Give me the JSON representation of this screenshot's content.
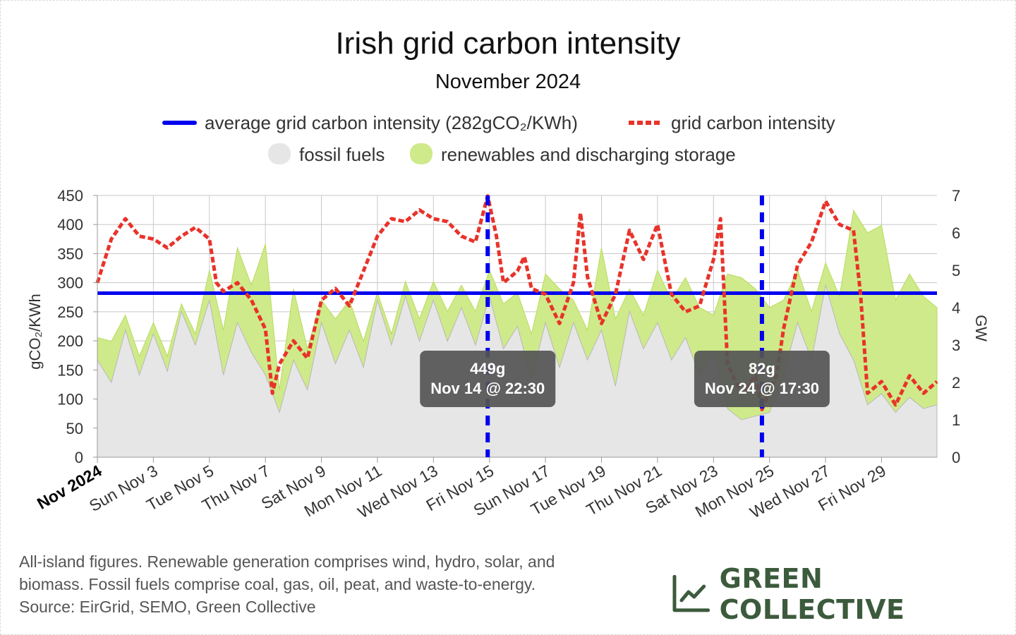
{
  "chart_data": {
    "type": "line",
    "title": "Irish grid carbon intensity",
    "subtitle": "November 2024",
    "ylabel_left": "gCO₂/KWh",
    "ylabel_right": "GW",
    "ylim_left": [
      0,
      450
    ],
    "ylim_right": [
      0,
      7
    ],
    "yticks_left": [
      "0",
      "50",
      "100",
      "150",
      "200",
      "250",
      "300",
      "350",
      "400",
      "450"
    ],
    "yticks_right": [
      "0",
      "1",
      "2",
      "3",
      "4",
      "5",
      "6",
      "7"
    ],
    "xlim": [
      "2024-11-01",
      "2024-11-30T23:30"
    ],
    "xticks": [
      {
        "date": "2024-11-01",
        "label": "Nov 2024",
        "bold": true
      },
      {
        "date": "2024-11-03",
        "label": "Sun Nov 3"
      },
      {
        "date": "2024-11-05",
        "label": "Tue Nov 5"
      },
      {
        "date": "2024-11-07",
        "label": "Thu Nov 7"
      },
      {
        "date": "2024-11-09",
        "label": "Sat Nov 9"
      },
      {
        "date": "2024-11-11",
        "label": "Mon Nov 11"
      },
      {
        "date": "2024-11-13",
        "label": "Wed Nov 13"
      },
      {
        "date": "2024-11-15",
        "label": "Fri Nov 15"
      },
      {
        "date": "2024-11-17",
        "label": "Sun Nov 17"
      },
      {
        "date": "2024-11-19",
        "label": "Tue Nov 19"
      },
      {
        "date": "2024-11-21",
        "label": "Thu Nov 21"
      },
      {
        "date": "2024-11-23",
        "label": "Sat Nov 23"
      },
      {
        "date": "2024-11-25",
        "label": "Mon Nov 25"
      },
      {
        "date": "2024-11-27",
        "label": "Wed Nov 27"
      },
      {
        "date": "2024-11-29",
        "label": "Fri Nov 29"
      }
    ],
    "grid": true,
    "legend": [
      {
        "label": "average grid carbon intensity (282gCO₂/KWh)",
        "color": "#0000ee",
        "style": "solid-line"
      },
      {
        "label": "grid carbon intensity",
        "color": "#e8332a",
        "style": "dashed-line"
      },
      {
        "label": "fossil fuels",
        "color": "#e6e6e6",
        "style": "area"
      },
      {
        "label": "renewables and discharging storage",
        "color": "#cfea8a",
        "style": "area"
      }
    ],
    "legend_position": "top-center",
    "average": 282,
    "series": [
      {
        "name": "grid carbon intensity",
        "axis": "left",
        "unit": "gCO₂/KWh",
        "points": [
          [
            "2024-11-01T00:00",
            300
          ],
          [
            "2024-11-01T12:00",
            375
          ],
          [
            "2024-11-02T00:00",
            410
          ],
          [
            "2024-11-02T12:00",
            380
          ],
          [
            "2024-11-03T00:00",
            375
          ],
          [
            "2024-11-03T12:00",
            360
          ],
          [
            "2024-11-04T00:00",
            380
          ],
          [
            "2024-11-04T12:00",
            395
          ],
          [
            "2024-11-05T00:00",
            375
          ],
          [
            "2024-11-05T06:00",
            300
          ],
          [
            "2024-11-05T12:00",
            285
          ],
          [
            "2024-11-06T00:00",
            300
          ],
          [
            "2024-11-06T12:00",
            270
          ],
          [
            "2024-11-07T00:00",
            220
          ],
          [
            "2024-11-07T06:00",
            110
          ],
          [
            "2024-11-07T12:00",
            160
          ],
          [
            "2024-11-08T00:00",
            200
          ],
          [
            "2024-11-08T12:00",
            170
          ],
          [
            "2024-11-09T00:00",
            270
          ],
          [
            "2024-11-09T12:00",
            290
          ],
          [
            "2024-11-10T00:00",
            260
          ],
          [
            "2024-11-10T12:00",
            320
          ],
          [
            "2024-11-11T00:00",
            380
          ],
          [
            "2024-11-11T12:00",
            410
          ],
          [
            "2024-11-12T00:00",
            405
          ],
          [
            "2024-11-12T12:00",
            425
          ],
          [
            "2024-11-13T00:00",
            410
          ],
          [
            "2024-11-13T12:00",
            405
          ],
          [
            "2024-11-14T00:00",
            380
          ],
          [
            "2024-11-14T12:00",
            370
          ],
          [
            "2024-11-14T22:30",
            449
          ],
          [
            "2024-11-15T06:00",
            380
          ],
          [
            "2024-11-15T12:00",
            300
          ],
          [
            "2024-11-16T00:00",
            320
          ],
          [
            "2024-11-16T06:00",
            345
          ],
          [
            "2024-11-16T12:00",
            290
          ],
          [
            "2024-11-17T00:00",
            280
          ],
          [
            "2024-11-17T12:00",
            230
          ],
          [
            "2024-11-18T00:00",
            300
          ],
          [
            "2024-11-18T06:00",
            420
          ],
          [
            "2024-11-18T12:00",
            310
          ],
          [
            "2024-11-19T00:00",
            230
          ],
          [
            "2024-11-19T12:00",
            280
          ],
          [
            "2024-11-20T00:00",
            390
          ],
          [
            "2024-11-20T12:00",
            340
          ],
          [
            "2024-11-21T00:00",
            400
          ],
          [
            "2024-11-21T12:00",
            280
          ],
          [
            "2024-11-22T00:00",
            250
          ],
          [
            "2024-11-22T12:00",
            260
          ],
          [
            "2024-11-23T00:00",
            340
          ],
          [
            "2024-11-23T06:00",
            410
          ],
          [
            "2024-11-23T12:00",
            160
          ],
          [
            "2024-11-24T00:00",
            110
          ],
          [
            "2024-11-24T12:00",
            140
          ],
          [
            "2024-11-24T17:30",
            82
          ],
          [
            "2024-11-25T06:00",
            140
          ],
          [
            "2024-11-25T12:00",
            220
          ],
          [
            "2024-11-26T00:00",
            330
          ],
          [
            "2024-11-26T12:00",
            370
          ],
          [
            "2024-11-27T00:00",
            440
          ],
          [
            "2024-11-27T12:00",
            400
          ],
          [
            "2024-11-28T00:00",
            390
          ],
          [
            "2024-11-28T06:00",
            280
          ],
          [
            "2024-11-28T12:00",
            110
          ],
          [
            "2024-11-29T00:00",
            130
          ],
          [
            "2024-11-29T12:00",
            90
          ],
          [
            "2024-11-30T00:00",
            140
          ],
          [
            "2024-11-30T12:00",
            110
          ],
          [
            "2024-11-30T23:30",
            130
          ]
        ]
      },
      {
        "name": "fossil fuels",
        "axis": "right",
        "unit": "GW",
        "points": [
          [
            "2024-11-01T00:00",
            2.6
          ],
          [
            "2024-11-01T12:00",
            2.0
          ],
          [
            "2024-11-02T00:00",
            3.4
          ],
          [
            "2024-11-02T12:00",
            2.2
          ],
          [
            "2024-11-03T00:00",
            3.3
          ],
          [
            "2024-11-03T12:00",
            2.3
          ],
          [
            "2024-11-04T00:00",
            3.9
          ],
          [
            "2024-11-04T12:00",
            3.0
          ],
          [
            "2024-11-05T00:00",
            4.2
          ],
          [
            "2024-11-05T12:00",
            2.2
          ],
          [
            "2024-11-06T00:00",
            3.6
          ],
          [
            "2024-11-06T12:00",
            2.8
          ],
          [
            "2024-11-07T00:00",
            2.2
          ],
          [
            "2024-11-07T12:00",
            1.2
          ],
          [
            "2024-11-08T00:00",
            2.6
          ],
          [
            "2024-11-08T12:00",
            1.8
          ],
          [
            "2024-11-09T00:00",
            3.6
          ],
          [
            "2024-11-09T12:00",
            2.5
          ],
          [
            "2024-11-10T00:00",
            3.4
          ],
          [
            "2024-11-10T12:00",
            2.4
          ],
          [
            "2024-11-11T00:00",
            4.2
          ],
          [
            "2024-11-11T12:00",
            3.0
          ],
          [
            "2024-11-12T00:00",
            4.3
          ],
          [
            "2024-11-12T12:00",
            3.1
          ],
          [
            "2024-11-13T00:00",
            4.2
          ],
          [
            "2024-11-13T12:00",
            3.1
          ],
          [
            "2024-11-14T00:00",
            4.0
          ],
          [
            "2024-11-14T12:00",
            3.0
          ],
          [
            "2024-11-15T00:00",
            4.3
          ],
          [
            "2024-11-15T12:00",
            2.9
          ],
          [
            "2024-11-16T00:00",
            3.5
          ],
          [
            "2024-11-16T12:00",
            2.1
          ],
          [
            "2024-11-17T00:00",
            3.6
          ],
          [
            "2024-11-17T12:00",
            2.4
          ],
          [
            "2024-11-18T00:00",
            3.6
          ],
          [
            "2024-11-18T12:00",
            2.6
          ],
          [
            "2024-11-19T00:00",
            3.4
          ],
          [
            "2024-11-19T12:00",
            1.9
          ],
          [
            "2024-11-20T00:00",
            3.9
          ],
          [
            "2024-11-20T12:00",
            2.9
          ],
          [
            "2024-11-21T00:00",
            3.6
          ],
          [
            "2024-11-21T12:00",
            2.6
          ],
          [
            "2024-11-22T00:00",
            3.2
          ],
          [
            "2024-11-22T12:00",
            2.2
          ],
          [
            "2024-11-23T00:00",
            2.8
          ],
          [
            "2024-11-23T12:00",
            1.3
          ],
          [
            "2024-11-24T00:00",
            1.0
          ],
          [
            "2024-11-24T12:00",
            1.1
          ],
          [
            "2024-11-25T00:00",
            1.2
          ],
          [
            "2024-11-25T12:00",
            2.2
          ],
          [
            "2024-11-26T00:00",
            3.6
          ],
          [
            "2024-11-26T12:00",
            2.6
          ],
          [
            "2024-11-27T00:00",
            4.6
          ],
          [
            "2024-11-27T12:00",
            3.3
          ],
          [
            "2024-11-28T00:00",
            2.6
          ],
          [
            "2024-11-28T12:00",
            1.4
          ],
          [
            "2024-11-29T00:00",
            1.7
          ],
          [
            "2024-11-29T12:00",
            1.2
          ],
          [
            "2024-11-30T00:00",
            1.6
          ],
          [
            "2024-11-30T12:00",
            1.3
          ],
          [
            "2024-11-30T23:30",
            1.4
          ]
        ]
      },
      {
        "name": "renewables and discharging storage",
        "axis": "right",
        "unit": "GW",
        "stacked_on": "fossil fuels",
        "points": [
          [
            "2024-11-01T00:00",
            0.6
          ],
          [
            "2024-11-01T12:00",
            1.1
          ],
          [
            "2024-11-02T00:00",
            0.4
          ],
          [
            "2024-11-02T12:00",
            0.5
          ],
          [
            "2024-11-03T00:00",
            0.3
          ],
          [
            "2024-11-03T12:00",
            0.4
          ],
          [
            "2024-11-04T00:00",
            0.2
          ],
          [
            "2024-11-04T12:00",
            0.3
          ],
          [
            "2024-11-05T00:00",
            0.8
          ],
          [
            "2024-11-05T12:00",
            1.2
          ],
          [
            "2024-11-06T00:00",
            2.0
          ],
          [
            "2024-11-06T12:00",
            1.8
          ],
          [
            "2024-11-07T00:00",
            3.5
          ],
          [
            "2024-11-07T12:00",
            0.6
          ],
          [
            "2024-11-08T00:00",
            1.9
          ],
          [
            "2024-11-08T12:00",
            1.1
          ],
          [
            "2024-11-09T00:00",
            0.6
          ],
          [
            "2024-11-09T12:00",
            1.2
          ],
          [
            "2024-11-10T00:00",
            0.8
          ],
          [
            "2024-11-10T12:00",
            0.7
          ],
          [
            "2024-11-11T00:00",
            0.2
          ],
          [
            "2024-11-11T12:00",
            0.3
          ],
          [
            "2024-11-12T00:00",
            0.4
          ],
          [
            "2024-11-12T12:00",
            0.6
          ],
          [
            "2024-11-13T00:00",
            0.5
          ],
          [
            "2024-11-13T12:00",
            0.8
          ],
          [
            "2024-11-14T00:00",
            0.6
          ],
          [
            "2024-11-14T12:00",
            0.9
          ],
          [
            "2024-11-15T00:00",
            0.7
          ],
          [
            "2024-11-15T12:00",
            1.2
          ],
          [
            "2024-11-16T00:00",
            0.9
          ],
          [
            "2024-11-16T12:00",
            1.2
          ],
          [
            "2024-11-17T00:00",
            1.3
          ],
          [
            "2024-11-17T12:00",
            2.1
          ],
          [
            "2024-11-18T00:00",
            0.6
          ],
          [
            "2024-11-18T12:00",
            0.8
          ],
          [
            "2024-11-19T00:00",
            2.2
          ],
          [
            "2024-11-19T12:00",
            1.8
          ],
          [
            "2024-11-20T00:00",
            0.6
          ],
          [
            "2024-11-20T12:00",
            0.9
          ],
          [
            "2024-11-21T00:00",
            1.4
          ],
          [
            "2024-11-21T12:00",
            1.6
          ],
          [
            "2024-11-22T00:00",
            1.6
          ],
          [
            "2024-11-22T12:00",
            1.8
          ],
          [
            "2024-11-23T00:00",
            1.0
          ],
          [
            "2024-11-23T12:00",
            3.6
          ],
          [
            "2024-11-24T00:00",
            3.8
          ],
          [
            "2024-11-24T12:00",
            3.4
          ],
          [
            "2024-11-25T00:00",
            2.8
          ],
          [
            "2024-11-25T12:00",
            2.0
          ],
          [
            "2024-11-26T00:00",
            1.4
          ],
          [
            "2024-11-26T12:00",
            1.3
          ],
          [
            "2024-11-27T00:00",
            0.6
          ],
          [
            "2024-11-27T12:00",
            1.0
          ],
          [
            "2024-11-28T00:00",
            4.0
          ],
          [
            "2024-11-28T12:00",
            4.6
          ],
          [
            "2024-11-29T00:00",
            4.5
          ],
          [
            "2024-11-29T12:00",
            3.0
          ],
          [
            "2024-11-30T00:00",
            3.3
          ],
          [
            "2024-11-30T12:00",
            3.0
          ],
          [
            "2024-11-30T23:30",
            2.6
          ]
        ]
      }
    ],
    "annotations": [
      {
        "date": "2024-11-14T22:30",
        "value": 449,
        "label": "449g",
        "time_label": "Nov 14 @ 22:30",
        "kind": "max"
      },
      {
        "date": "2024-11-24T17:30",
        "value": 82,
        "label": "82g",
        "time_label": "Nov 24 @ 17:30",
        "kind": "min"
      }
    ],
    "colors": {
      "average": "#0000ee",
      "intensity": "#e8332a",
      "fossil": "#e6e6e6",
      "renewables": "#cfea8a",
      "renewables_edge": "#b9db5e",
      "marker": "#0000ee",
      "tooltip_bg": "#555555"
    }
  },
  "footnote": [
    "All-island figures. Renewable generation comprises wind, hydro, solar, and",
    "biomass. Fossil fuels comprise coal, gas, oil, peat, and waste-to-energy.",
    "Source: EirGrid, SEMO, Green Collective"
  ],
  "brand": {
    "name": "GREEN COLLECTIVE",
    "icon": "line-chart-icon",
    "color": "#3c5a3c"
  }
}
